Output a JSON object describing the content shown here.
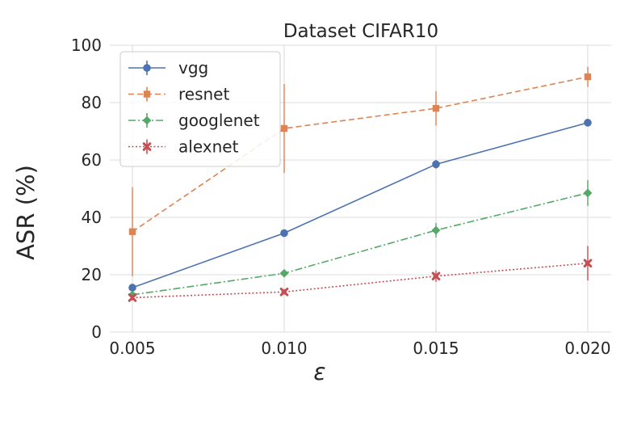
{
  "chart_data": {
    "type": "line",
    "title": "Dataset CIFAR10",
    "xlabel": "ε",
    "ylabel": "ASR (%)",
    "x": [
      0.005,
      0.01,
      0.015,
      0.02
    ],
    "x_tick_labels": [
      "0.005",
      "0.010",
      "0.015",
      "0.020"
    ],
    "y_ticks": [
      0,
      20,
      40,
      60,
      80,
      100
    ],
    "y_tick_labels": [
      "0",
      "20",
      "40",
      "60",
      "80",
      "100"
    ],
    "ylim": [
      0,
      100
    ],
    "grid": true,
    "legend_position": "top-left",
    "series": [
      {
        "name": "vgg",
        "color": "#4c72b0",
        "line_style": "solid",
        "marker": "circle",
        "values": [
          15.5,
          34.5,
          58.5,
          73.0
        ],
        "errors": [
          1.0,
          1.0,
          1.5,
          1.0
        ]
      },
      {
        "name": "resnet",
        "color": "#dd8452",
        "line_style": "dashed",
        "marker": "square",
        "values": [
          35.0,
          71.0,
          78.0,
          89.0
        ],
        "errors": [
          15.5,
          15.5,
          6.0,
          3.5
        ]
      },
      {
        "name": "googlenet",
        "color": "#55a868",
        "line_style": "dashdot",
        "marker": "diamond",
        "values": [
          13.0,
          20.5,
          35.5,
          48.5
        ],
        "errors": [
          1.0,
          1.0,
          2.5,
          4.5
        ]
      },
      {
        "name": "alexnet",
        "color": "#c44e52",
        "line_style": "dotted",
        "marker": "x",
        "values": [
          12.0,
          14.0,
          19.5,
          24.0
        ],
        "errors": [
          1.0,
          1.0,
          2.0,
          6.0
        ]
      }
    ]
  }
}
